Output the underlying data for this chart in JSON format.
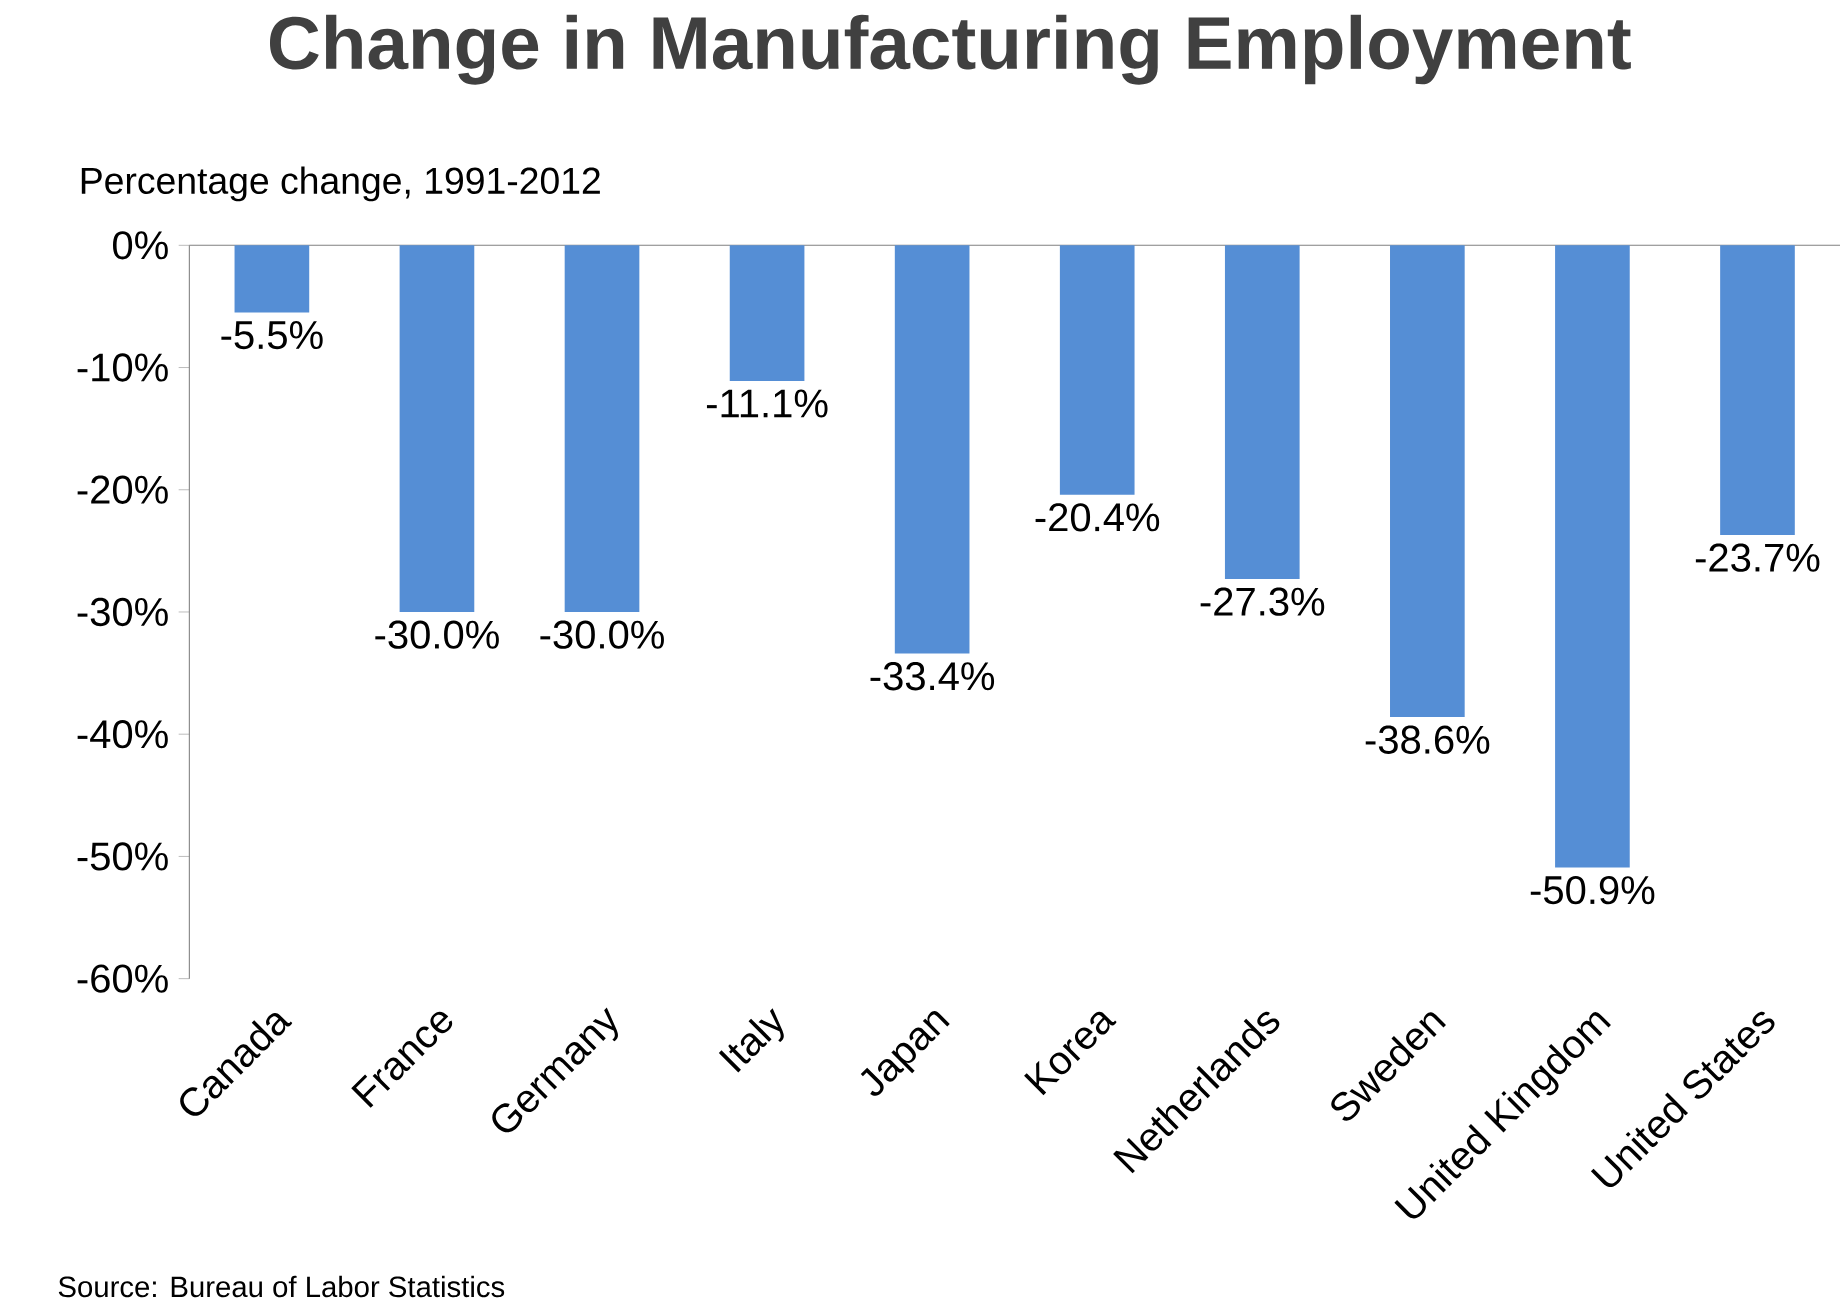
{
  "chart_data": {
    "type": "bar",
    "title": "Change in Manufacturing Employment",
    "ylabel": "Percentage  change, 1991-2012",
    "categories": [
      "Canada",
      "France",
      "Germany",
      "Italy",
      "Japan",
      "Korea",
      "Netherlands",
      "Sweden",
      "United Kingdom",
      "United States"
    ],
    "values": [
      -5.5,
      -30.0,
      -30.0,
      -11.1,
      -33.4,
      -20.4,
      -27.3,
      -38.6,
      -50.9,
      -23.7
    ],
    "value_labels": [
      "-5.5%",
      "-30.0%",
      "-30.0%",
      "-11.1%",
      "-33.4%",
      "-20.4%",
      "-27.3%",
      "-38.6%",
      "-50.9%",
      "-23.7%"
    ],
    "color": "#558ed5",
    "ylim": [
      -60,
      0
    ],
    "yticks": [
      {
        "value": -60,
        "label": "-60%"
      },
      {
        "value": -50,
        "label": "-50%"
      },
      {
        "value": -40,
        "label": "-40%"
      },
      {
        "value": -30,
        "label": "-30%"
      },
      {
        "value": -20,
        "label": "-20%"
      },
      {
        "value": -10,
        "label": "-10%"
      },
      {
        "value": 0,
        "label": "0%"
      }
    ],
    "grid": false,
    "annotations": [
      "Source: Bureau of Labor Statistics"
    ]
  }
}
